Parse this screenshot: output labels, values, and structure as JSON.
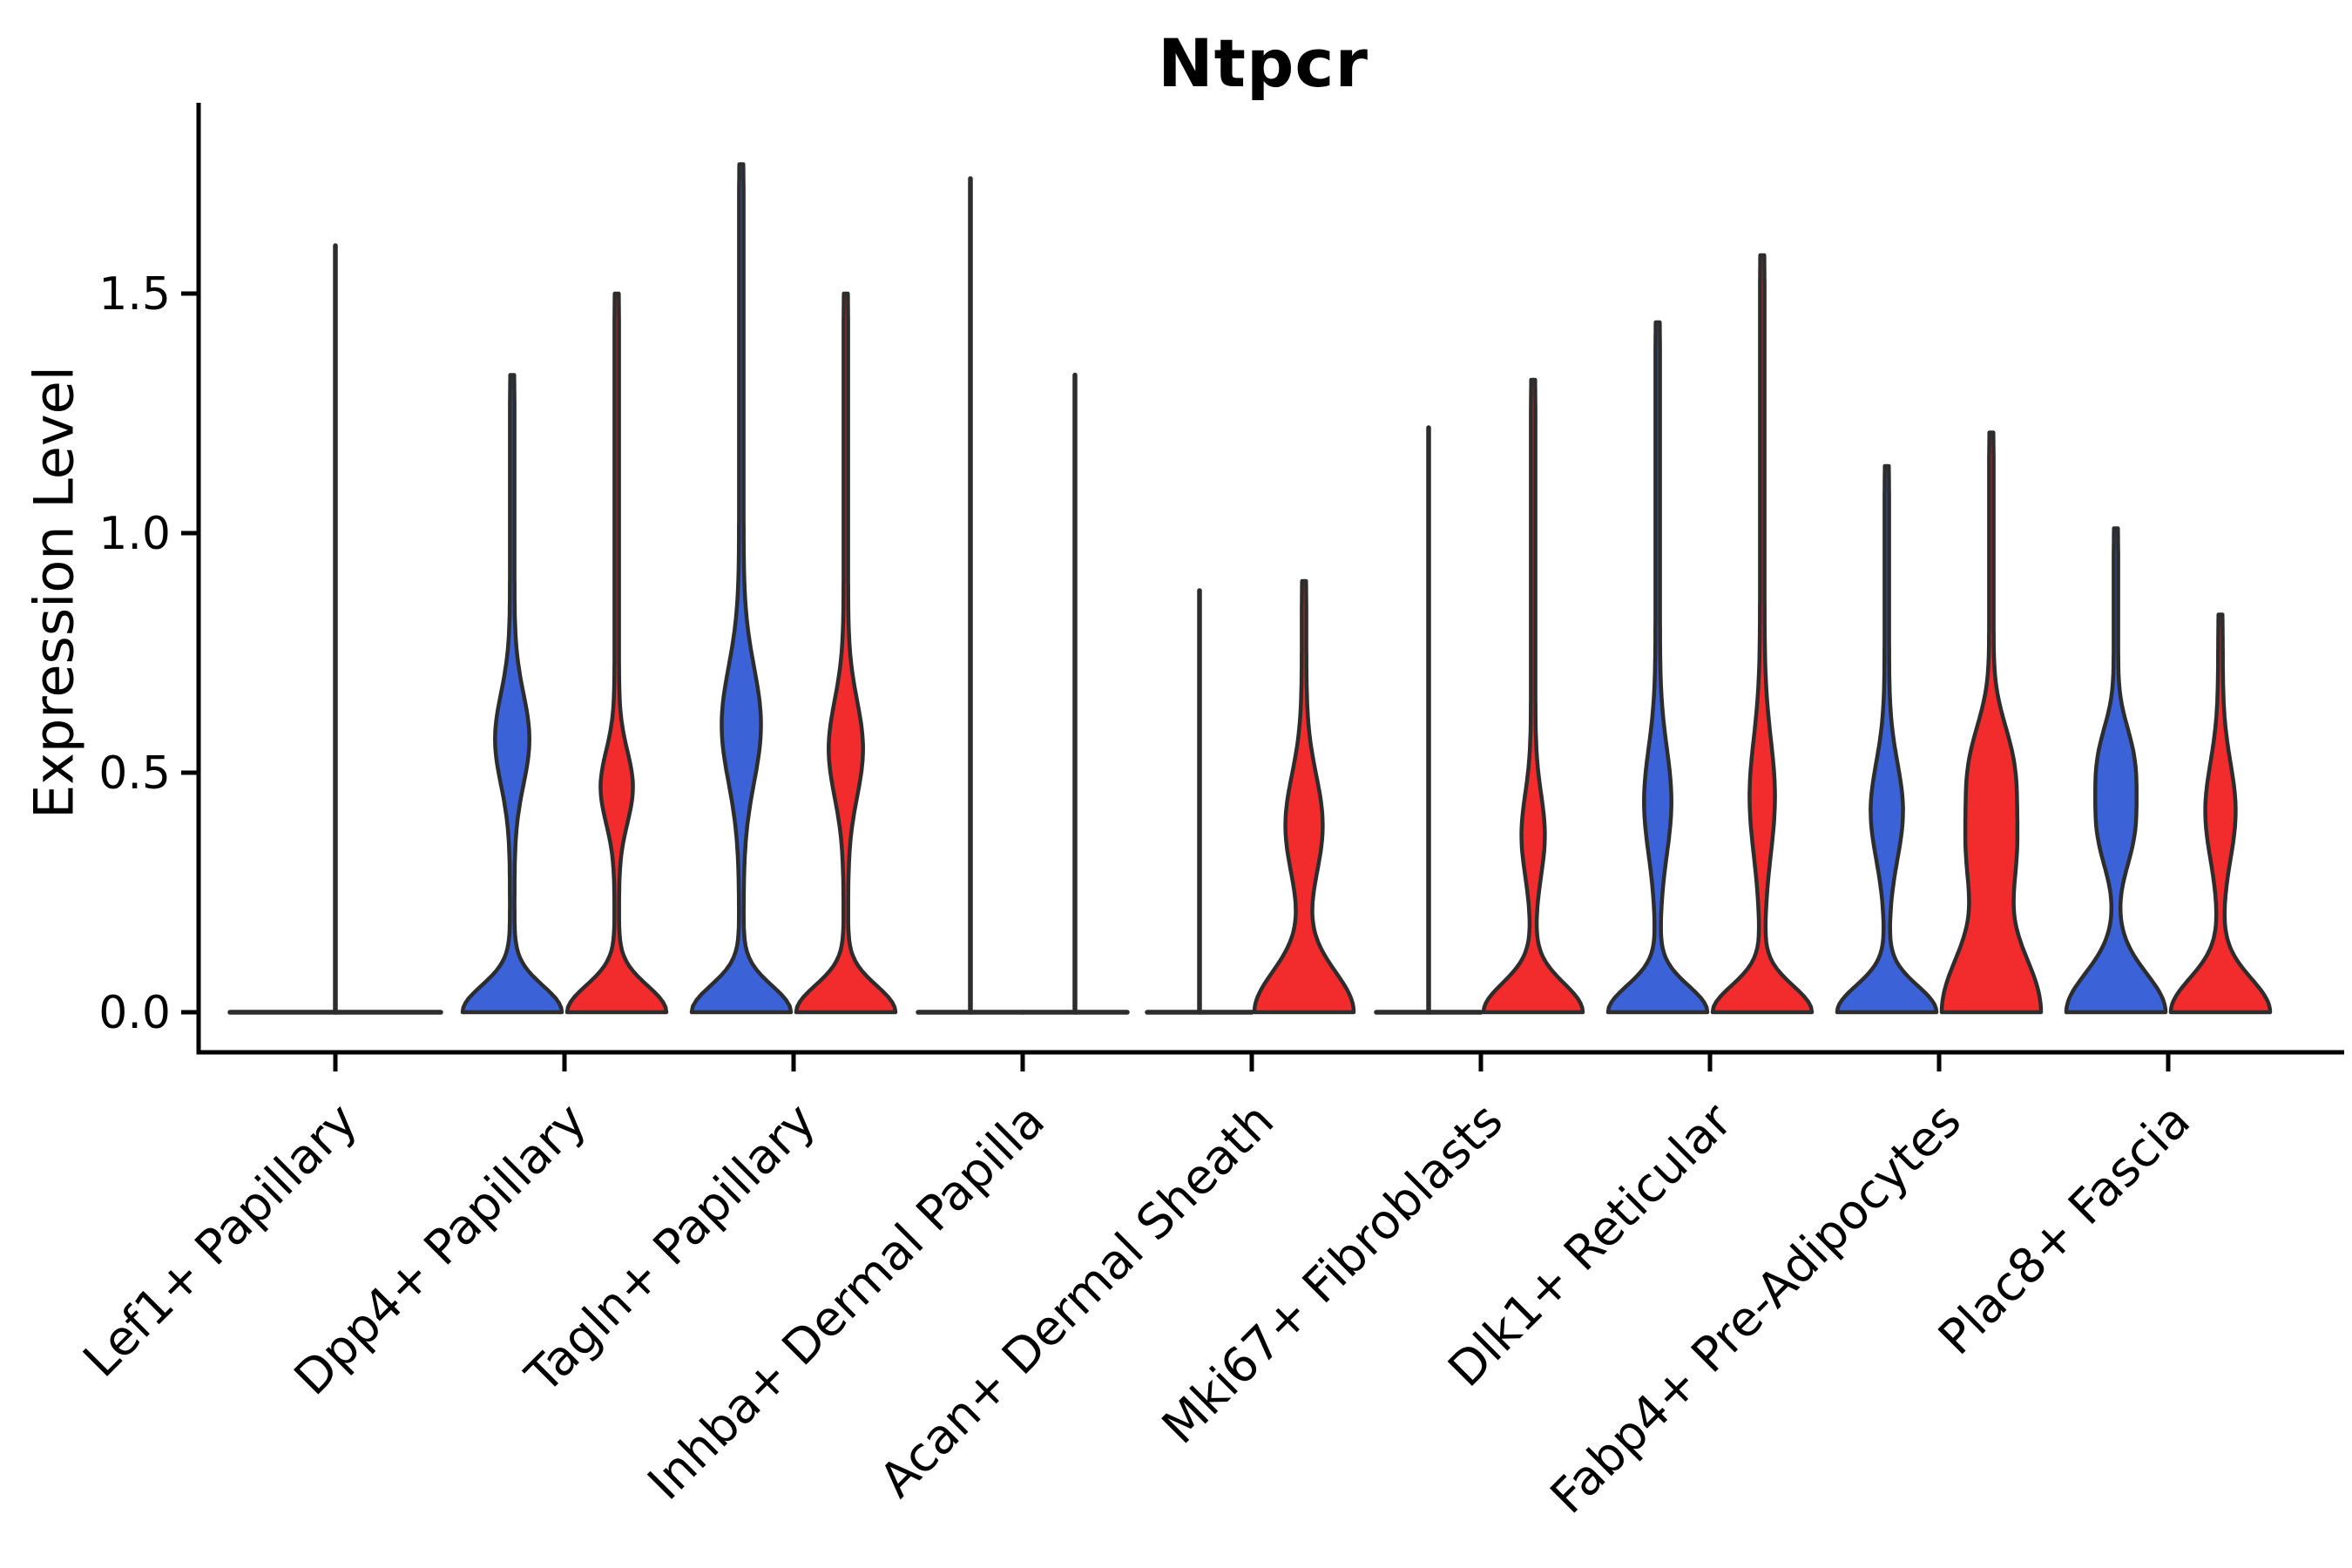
{
  "chart_data": {
    "type": "violin",
    "title": "Ntpcr",
    "xlabel": "",
    "ylabel": "Expression Level",
    "ytick_labels": [
      "0.0",
      "0.5",
      "1.0",
      "1.5"
    ],
    "ytick_values": [
      0,
      0.5,
      1.0,
      1.5
    ],
    "ylim": [
      -0.085,
      1.9
    ],
    "grid": false,
    "legend_position": "none",
    "colors": {
      "blue": "#3B62D6",
      "red": "#F22C2C",
      "outline": "#2D2D2D",
      "axis": "#000000"
    },
    "categories": [
      "Lef1+ Papillary",
      "Dpp4+ Papillary",
      "Tagln+ Papillary",
      "Inhba+ Dermal Papilla",
      "Acan+ Dermal Sheath",
      "Mki67+ Fibroblasts",
      "Dlk1+ Reticular",
      "Fabp4+ Pre-Adipocytes",
      "Plac8+ Fascia"
    ],
    "groups": [
      {
        "category": "Lef1+ Papillary",
        "violins": [
          {
            "split": "single",
            "color": "none",
            "flat": true,
            "max": 1.6
          }
        ]
      },
      {
        "category": "Dpp4+ Papillary",
        "violins": [
          {
            "split": "blue",
            "color": "blue",
            "flat": false,
            "max": 1.33,
            "mode": 0.57,
            "mode_range": [
              0.38,
              0.76
            ],
            "bulge_width": 0.3
          },
          {
            "split": "red",
            "color": "red",
            "flat": false,
            "max": 1.5,
            "mode": 0.47,
            "mode_range": [
              0.32,
              0.62
            ],
            "bulge_width": 0.28
          }
        ]
      },
      {
        "category": "Tagln+ Papillary",
        "violins": [
          {
            "split": "blue",
            "color": "blue",
            "flat": false,
            "max": 1.77,
            "mode": 0.6,
            "mode_range": [
              0.36,
              0.84
            ],
            "bulge_width": 0.35
          },
          {
            "split": "red",
            "color": "red",
            "flat": false,
            "max": 1.5,
            "mode": 0.55,
            "mode_range": [
              0.35,
              0.75
            ],
            "bulge_width": 0.3
          }
        ]
      },
      {
        "category": "Inhba+ Dermal Papilla",
        "violins": [
          {
            "split": "blue",
            "color": "none",
            "flat": true,
            "max": 1.74
          },
          {
            "split": "red",
            "color": "none",
            "flat": true,
            "max": 1.33
          }
        ]
      },
      {
        "category": "Acan+ Dermal Sheath",
        "violins": [
          {
            "split": "blue",
            "color": "none",
            "flat": true,
            "max": 0.88
          },
          {
            "split": "red",
            "color": "red",
            "flat": false,
            "max": 0.9,
            "mode": 0.39,
            "mode_range": [
              0.18,
              0.6
            ],
            "bulge_width": 0.33,
            "base_sigma": 0.085
          }
        ]
      },
      {
        "category": "Mki67+ Fibroblasts",
        "violins": [
          {
            "split": "blue",
            "color": "none",
            "flat": true,
            "max": 1.22
          },
          {
            "split": "red",
            "color": "red",
            "flat": false,
            "max": 1.32,
            "mode": 0.37,
            "mode_range": [
              0.2,
              0.54
            ],
            "bulge_width": 0.19,
            "base_sigma": 0.06
          }
        ]
      },
      {
        "category": "Dlk1+ Reticular",
        "violins": [
          {
            "split": "blue",
            "color": "blue",
            "flat": false,
            "max": 1.44,
            "mode": 0.44,
            "mode_range": [
              0.22,
              0.66
            ],
            "bulge_width": 0.23
          },
          {
            "split": "red",
            "color": "red",
            "flat": false,
            "max": 1.58,
            "mode": 0.45,
            "mode_range": [
              0.21,
              0.69
            ],
            "bulge_width": 0.21
          }
        ]
      },
      {
        "category": "Fabp4+ Pre-Adipocytes",
        "violins": [
          {
            "split": "blue",
            "color": "blue",
            "flat": false,
            "max": 1.14,
            "mode": 0.42,
            "mode_range": [
              0.22,
              0.62
            ],
            "bulge_width": 0.28
          },
          {
            "split": "red",
            "color": "red",
            "flat": false,
            "max": 1.21,
            "mode": 0.42,
            "mode_range": [
              0.1,
              0.74
            ],
            "bulge_width": 0.47,
            "base_sigma": 0.13,
            "profile": "flat"
          }
        ]
      },
      {
        "category": "Plac8+ Fascia",
        "violins": [
          {
            "split": "blue",
            "color": "blue",
            "flat": false,
            "max": 1.01,
            "mode": 0.45,
            "mode_range": [
              0.19,
              0.71
            ],
            "bulge_width": 0.37,
            "base_sigma": 0.08,
            "profile": "flat"
          },
          {
            "split": "red",
            "color": "red",
            "flat": false,
            "max": 0.83,
            "mode": 0.42,
            "mode_range": [
              0.22,
              0.62
            ],
            "bulge_width": 0.26,
            "base_sigma": 0.07
          }
        ]
      }
    ]
  }
}
